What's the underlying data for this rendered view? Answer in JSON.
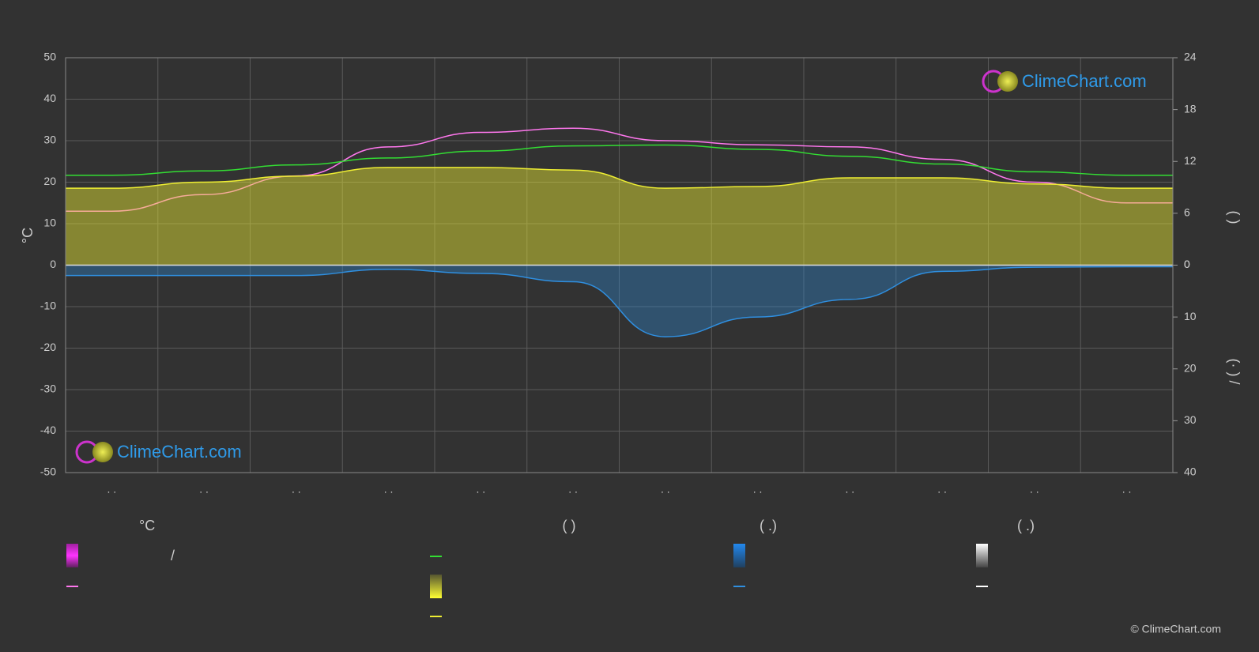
{
  "chart_data": {
    "type": "line",
    "categories": [
      ". .",
      ". .",
      ". .",
      ". .",
      ". .",
      ". .",
      ". .",
      ". .",
      ". .",
      ". .",
      ". .",
      ". ."
    ],
    "ylabel": "°C",
    "y2label": "(   )",
    "y3label": "(·  )  /",
    "ylim": [
      -50,
      50
    ],
    "yticks": [
      -50,
      -40,
      -30,
      -20,
      -10,
      0,
      10,
      20,
      30,
      40,
      50
    ],
    "y2lim": [
      0,
      24
    ],
    "y2ticks": [
      0,
      6,
      12,
      18,
      24
    ],
    "y3lim": [
      40,
      0
    ],
    "y3ticks": [
      0,
      10,
      20,
      30,
      40
    ],
    "grid": true,
    "series": [
      {
        "color": "#ff77ee",
        "values": [
          13,
          17,
          21.5,
          28.5,
          32,
          33,
          30,
          29,
          28.5,
          25.5,
          20,
          15
        ]
      },
      {
        "color": "#33dd33",
        "axis": "y2",
        "values": [
          10.4,
          10.9,
          11.6,
          12.4,
          13.2,
          13.8,
          13.9,
          13.4,
          12.6,
          11.7,
          10.8,
          10.4
        ]
      },
      {
        "color": "#eeee33",
        "axis": "y2",
        "area": true,
        "values": [
          8.9,
          9.6,
          10.3,
          11.3,
          11.3,
          11,
          8.9,
          9.1,
          10.1,
          10.1,
          9.4,
          8.9
        ]
      },
      {
        "color": "#2f8fe0",
        "axis": "y3",
        "area": true,
        "values": [
          2,
          2,
          2,
          0.8,
          1.6,
          3.2,
          13.8,
          10,
          6.6,
          1.2,
          0.4,
          0.3
        ]
      }
    ],
    "legend": {
      "headers": [
        "°C",
        "(          )",
        "(   .)",
        "(   .)"
      ],
      "separator": "/"
    },
    "watermark": "ClimeChart.com",
    "copyright": "© ClimeChart.com"
  }
}
